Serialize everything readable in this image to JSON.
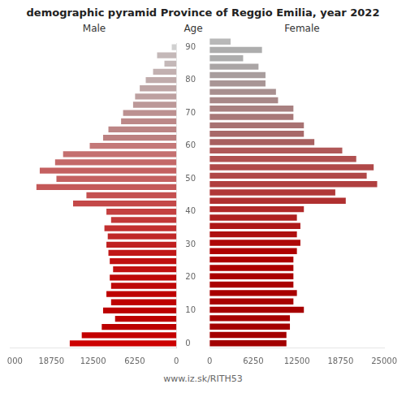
{
  "chart_data": {
    "type": "bar",
    "orientation": "horizontal",
    "title": "demographic pyramid Province of Reggio Emilia, year 2022",
    "ylabel": "Age",
    "annotations": [
      "www.iz.sk/RITH53"
    ],
    "categories": [
      "90",
      null,
      null,
      null,
      "80",
      null,
      null,
      null,
      "70",
      null,
      null,
      null,
      "60",
      null,
      null,
      null,
      "50",
      null,
      null,
      null,
      "40",
      null,
      null,
      null,
      "30",
      null,
      null,
      null,
      "20",
      null,
      null,
      null,
      "10",
      null,
      null,
      null,
      "0"
    ],
    "series": [
      {
        "name": "Male",
        "values": [
          700,
          2900,
          1800,
          3500,
          4600,
          5500,
          6200,
          6500,
          8000,
          8300,
          10200,
          11000,
          13000,
          17000,
          18200,
          20500,
          18000,
          21000,
          13500,
          15500,
          10500,
          9800,
          10800,
          10300,
          10500,
          10200,
          10000,
          9500,
          10000,
          9800,
          10500,
          9800,
          11000,
          9200,
          11200,
          14200,
          16000
        ],
        "colors": [
          "#d0d0d0",
          "#c4b8b8",
          "#c4b8b8",
          "#c2b0b0",
          "#c0abab",
          "#bea5a5",
          "#bda0a0",
          "#bc9898",
          "#bc9090",
          "#bc8888",
          "#bc8585",
          "#bc8080",
          "#c47878",
          "#c47070",
          "#c46868",
          "#c46060",
          "#c46060",
          "#c45858",
          "#c45050",
          "#c44848",
          "#c44040",
          "#c23838",
          "#c23030",
          "#c02828",
          "#c02020",
          "#c01818",
          "#c01010",
          "#c01010",
          "#be0808",
          "#be0808",
          "#be0000",
          "#be0000",
          "#bc0000",
          "#bc0000",
          "#bc0000",
          "#c40000",
          "#cc0000"
        ]
      },
      {
        "name": "Female",
        "values": [
          3000,
          7500,
          4800,
          7000,
          8000,
          8000,
          9500,
          9800,
          12000,
          12000,
          13500,
          13500,
          15000,
          19000,
          21000,
          23500,
          22500,
          24000,
          18000,
          19500,
          13500,
          12500,
          13000,
          12500,
          13000,
          12500,
          12000,
          12000,
          12000,
          12000,
          12500,
          12000,
          13500,
          11500,
          11500,
          11000,
          11000
        ],
        "colors": [
          "#b8b8b8",
          "#adadad",
          "#adadad",
          "#aaa5a5",
          "#a89d9d",
          "#a89595",
          "#a88f8f",
          "#a88888",
          "#a88080",
          "#a87878",
          "#a87272",
          "#a86868",
          "#a86060",
          "#b05858",
          "#b05050",
          "#b04848",
          "#b04848",
          "#b04040",
          "#b03838",
          "#b03030",
          "#b02828",
          "#ae2020",
          "#ae1818",
          "#ae1010",
          "#ae0808",
          "#ae0000",
          "#ac0000",
          "#ac0000",
          "#aa0000",
          "#aa0000",
          "#a80000",
          "#a80000",
          "#a60000",
          "#a60000",
          "#a40000",
          "#a40000",
          "#a20000"
        ]
      }
    ],
    "xlim": [
      0,
      25000
    ],
    "xticks": [
      0,
      6250,
      12500,
      18750,
      25000
    ],
    "grid": false
  }
}
